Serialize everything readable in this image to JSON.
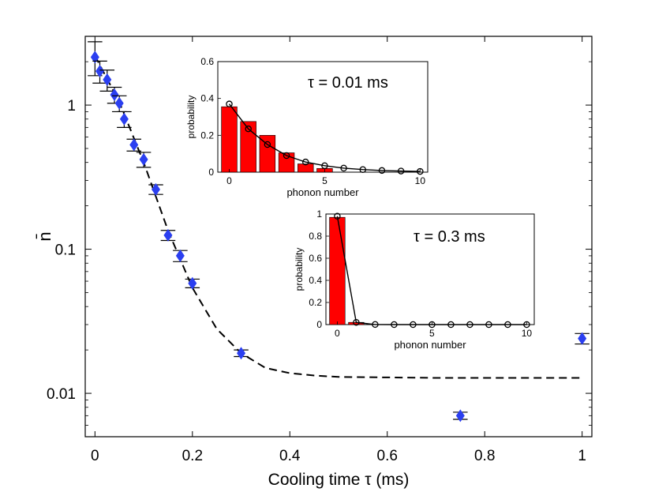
{
  "chart_data": [
    {
      "type": "scatter",
      "xlabel": "Cooling time τ (ms)",
      "ylabel": "n̄",
      "xlim": [
        -0.02,
        1.02
      ],
      "ylim": [
        0.005,
        3.0
      ],
      "yscale": "log",
      "xticks": [
        0,
        0.2,
        0.4,
        0.6,
        0.8,
        1
      ],
      "xticklabels": [
        "0",
        "0.2",
        "0.4",
        "0.6",
        "0.8",
        "1"
      ],
      "yticks": [
        0.01,
        0.1,
        1
      ],
      "yticklabels": [
        "0.01",
        "0.1",
        "1"
      ],
      "marker_color": "#2b3ff0",
      "series": [
        {
          "marker": "diamond",
          "x": [
            0,
            0.01,
            0.025,
            0.04,
            0.05,
            0.06,
            0.08,
            0.1,
            0.125,
            0.15,
            0.175,
            0.2,
            0.3,
            0.75,
            1
          ],
          "y": [
            2.15,
            1.72,
            1.5,
            1.18,
            1.03,
            0.8,
            0.53,
            0.42,
            0.26,
            0.125,
            0.09,
            0.058,
            0.019,
            0.007,
            0.024
          ],
          "xerr": [
            0.015,
            0.015,
            0.015,
            0.015,
            0.015,
            0.015,
            0.015,
            0.015,
            0.015,
            0.015,
            0.015,
            0.015,
            0.015,
            0.015,
            0.015
          ],
          "yerr_low": [
            0.55,
            0.3,
            0.25,
            0.15,
            0.13,
            0.1,
            0.05,
            0.05,
            0.02,
            0.01,
            0.008,
            0.004,
            0.001,
            0.0004,
            0.002
          ],
          "yerr_high": [
            0.6,
            0.3,
            0.25,
            0.15,
            0.13,
            0.1,
            0.05,
            0.05,
            0.02,
            0.01,
            0.008,
            0.004,
            0.001,
            0.0004,
            0.002
          ]
        },
        {
          "style": "dashed-line",
          "x": [
            0,
            0.05,
            0.1,
            0.15,
            0.2,
            0.25,
            0.3,
            0.35,
            0.4,
            0.45,
            0.5,
            0.6,
            0.7,
            0.8,
            0.9,
            1
          ],
          "y": [
            2.2,
            1.05,
            0.4,
            0.135,
            0.054,
            0.028,
            0.019,
            0.015,
            0.0138,
            0.0133,
            0.013,
            0.0129,
            0.0128,
            0.0128,
            0.0128,
            0.0128
          ]
        }
      ]
    },
    {
      "type": "bar",
      "annotation": "τ = 0.01 ms",
      "xlabel": "phonon number",
      "ylabel": "probability",
      "xlim": [
        -0.6,
        10.4
      ],
      "ylim": [
        0,
        0.6
      ],
      "xticks": [
        0,
        5,
        10
      ],
      "yticks": [
        0,
        0.2,
        0.4,
        0.6
      ],
      "yticklabels": [
        "0",
        "0.2",
        "0.4",
        "0.6"
      ],
      "bar_color": "#ff0000",
      "categories": [
        0,
        1,
        2,
        3,
        4,
        5,
        6,
        7,
        8,
        9,
        10
      ],
      "values": [
        0.355,
        0.275,
        0.2,
        0.105,
        0.045,
        0.02,
        0,
        0,
        0,
        0,
        0
      ],
      "line": {
        "x": [
          0,
          1,
          2,
          3,
          4,
          5,
          6,
          7,
          8,
          9,
          10
        ],
        "y": [
          0.37,
          0.235,
          0.15,
          0.09,
          0.055,
          0.035,
          0.022,
          0.014,
          0.009,
          0.006,
          0.004
        ]
      }
    },
    {
      "type": "bar",
      "annotation": "τ = 0.3 ms",
      "xlabel": "phonon number",
      "ylabel": "probability",
      "xlim": [
        -0.6,
        10.4
      ],
      "ylim": [
        0,
        1
      ],
      "xticks": [
        0,
        5,
        10
      ],
      "yticks": [
        0,
        0.2,
        0.4,
        0.6,
        0.8,
        1
      ],
      "yticklabels": [
        "0",
        "0.2",
        "0.4",
        "0.6",
        "0.8",
        "1"
      ],
      "bar_color": "#ff0000",
      "categories": [
        0,
        1,
        2,
        3,
        4,
        5,
        6,
        7,
        8,
        9,
        10
      ],
      "values": [
        0.97,
        0.02,
        0,
        0,
        0,
        0,
        0,
        0,
        0,
        0,
        0
      ],
      "line": {
        "x": [
          0,
          1,
          2,
          3,
          4,
          5,
          6,
          7,
          8,
          9,
          10
        ],
        "y": [
          0.98,
          0.02,
          0.001,
          0,
          0,
          0,
          0,
          0,
          0,
          0,
          0
        ]
      }
    }
  ]
}
